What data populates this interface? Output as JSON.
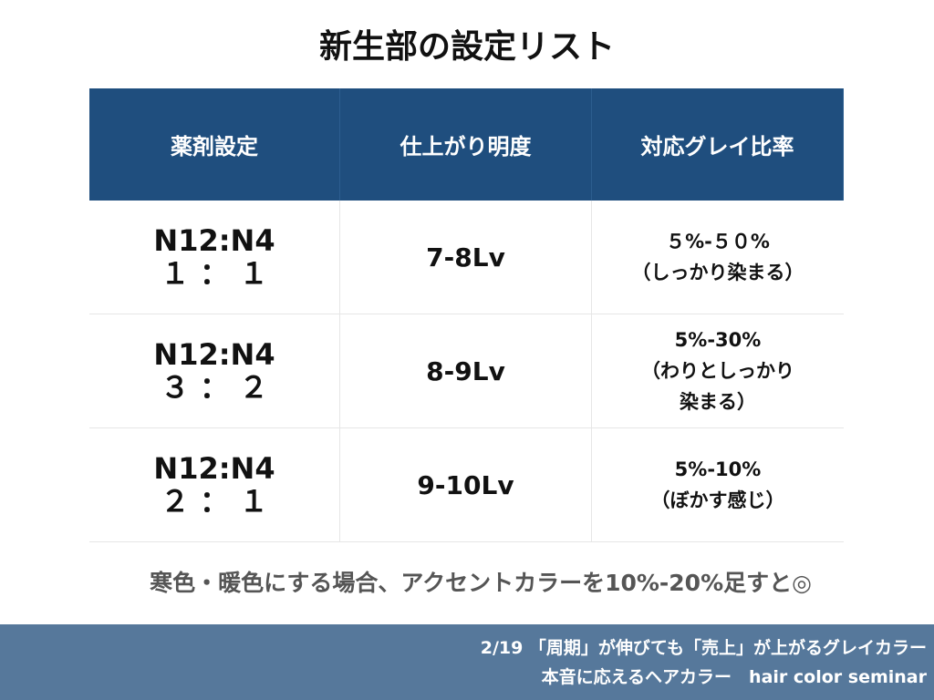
{
  "title": "新生部の設定リスト",
  "table": {
    "header": [
      "薬剤設定",
      "仕上がり明度",
      "対応グレイ比率"
    ],
    "rows": [
      [
        [
          "N12:N4",
          "１ ： １"
        ],
        [
          "7-8Lv"
        ],
        [
          "５%-５０%",
          "（しっかり染まる）"
        ]
      ],
      [
        [
          "N12:N4",
          "３ ： ２"
        ],
        [
          "8-9Lv"
        ],
        [
          "5%-30%",
          "（わりとしっかり",
          "染まる）"
        ]
      ],
      [
        [
          "N12:N4",
          "２ ： １"
        ],
        [
          "9-10Lv"
        ],
        [
          "5%-10%",
          "（ぼかす感じ）"
        ]
      ]
    ]
  },
  "note": "寒色・暖色にする場合、アクセントカラーを10%-20%足すと◎",
  "footer": [
    "2/19 「周期」が伸びても「売上」が上がるグレイカラー",
    "本音に応えるヘアカラー　hair color seminar"
  ]
}
